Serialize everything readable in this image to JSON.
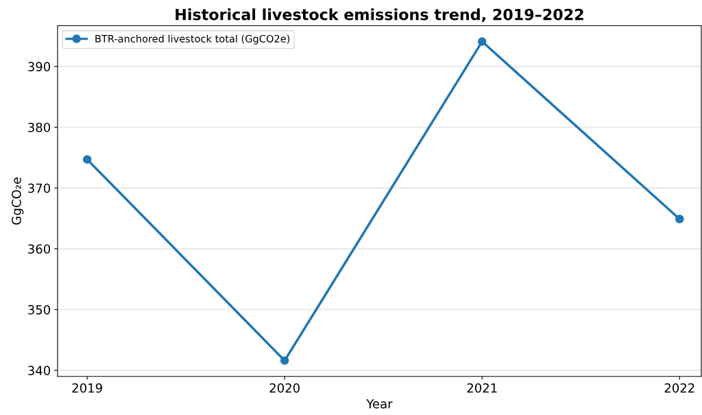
{
  "chart_data": {
    "type": "line",
    "title": "Historical livestock emissions trend, 2019–2022",
    "xlabel": "Year",
    "ylabel": "GgCO₂e",
    "x": [
      2019,
      2020,
      2021,
      2022
    ],
    "series": [
      {
        "name": "BTR-anchored livestock total (GgCO2e)",
        "color": "#1f77b4",
        "values": [
          374.7,
          341.6,
          394.1,
          364.9
        ]
      }
    ],
    "xlim": [
      2018.85,
      2022.11
    ],
    "xticks": [
      2019,
      2020,
      2021,
      2022
    ],
    "ylim": [
      339.0,
      396.7
    ],
    "yticks": [
      340,
      350,
      360,
      370,
      380,
      390
    ],
    "grid": "y",
    "legend": "top left",
    "marker": "circle",
    "line_style": "solid"
  }
}
